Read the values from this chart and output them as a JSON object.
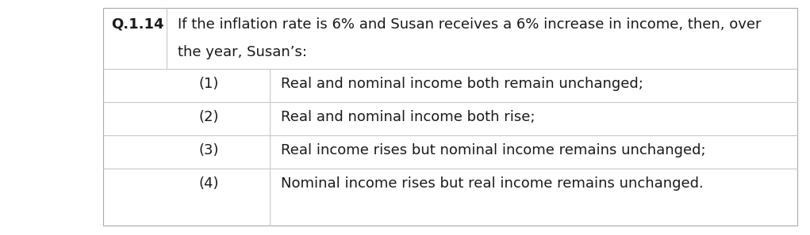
{
  "question_label": "Q.1.14",
  "question_text_line1": "If the inflation rate is 6% and Susan receives a 6% increase in income, then, over",
  "question_text_line2": "the year, Susan’s:",
  "options": [
    {
      "number": "(1)",
      "text": "Real and nominal income both remain unchanged;"
    },
    {
      "number": "(2)",
      "text": "Real and nominal income both rise;"
    },
    {
      "number": "(3)",
      "text": "Real income rises but nominal income remains unchanged;"
    },
    {
      "number": "(4)",
      "text": "Nominal income rises but real income remains unchanged."
    }
  ],
  "bg_color": "#ffffff",
  "border_color": "#c8c8c8",
  "text_color": "#1a1a1a",
  "font_size": 13.0,
  "outer_border_color": "#aaaaaa"
}
